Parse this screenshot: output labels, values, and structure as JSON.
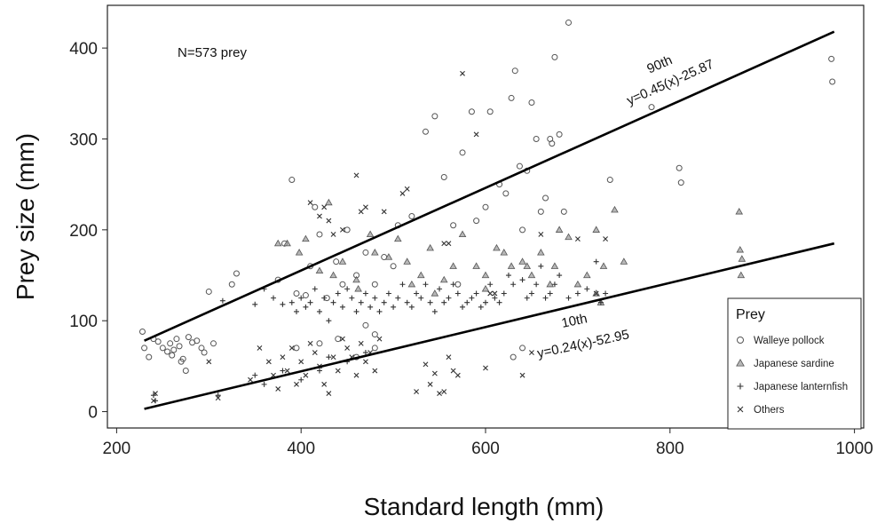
{
  "chart_data": {
    "type": "scatter",
    "title": "",
    "xlabel": "Standard length (mm)",
    "ylabel": "Prey size (mm)",
    "xlim": [
      190,
      1010
    ],
    "ylim": [
      -18,
      447
    ],
    "xticks": [
      200,
      400,
      600,
      800,
      1000
    ],
    "yticks": [
      0,
      100,
      200,
      300,
      400
    ],
    "grid": false,
    "annotation": "N=573 prey",
    "legend": {
      "title": "Prey",
      "position": "bottom-right"
    },
    "series": [
      {
        "name": "Walleye pollock",
        "marker": "circle",
        "points": [
          [
            228,
            88
          ],
          [
            230,
            70
          ],
          [
            235,
            60
          ],
          [
            240,
            80
          ],
          [
            245,
            77
          ],
          [
            250,
            70
          ],
          [
            255,
            66
          ],
          [
            258,
            75
          ],
          [
            260,
            62
          ],
          [
            262,
            68
          ],
          [
            265,
            80
          ],
          [
            268,
            72
          ],
          [
            270,
            55
          ],
          [
            272,
            58
          ],
          [
            275,
            45
          ],
          [
            278,
            82
          ],
          [
            282,
            76
          ],
          [
            287,
            78
          ],
          [
            292,
            70
          ],
          [
            295,
            65
          ],
          [
            300,
            132
          ],
          [
            305,
            75
          ],
          [
            325,
            140
          ],
          [
            330,
            152
          ],
          [
            375,
            145
          ],
          [
            382,
            185
          ],
          [
            390,
            255
          ],
          [
            395,
            130
          ],
          [
            405,
            128
          ],
          [
            410,
            160
          ],
          [
            415,
            225
          ],
          [
            420,
            195
          ],
          [
            428,
            125
          ],
          [
            438,
            165
          ],
          [
            445,
            140
          ],
          [
            450,
            200
          ],
          [
            460,
            150
          ],
          [
            470,
            175
          ],
          [
            480,
            140
          ],
          [
            490,
            170
          ],
          [
            500,
            160
          ],
          [
            505,
            205
          ],
          [
            520,
            215
          ],
          [
            535,
            308
          ],
          [
            545,
            325
          ],
          [
            555,
            258
          ],
          [
            565,
            205
          ],
          [
            570,
            140
          ],
          [
            575,
            285
          ],
          [
            585,
            330
          ],
          [
            590,
            210
          ],
          [
            600,
            225
          ],
          [
            605,
            330
          ],
          [
            615,
            250
          ],
          [
            622,
            240
          ],
          [
            628,
            345
          ],
          [
            632,
            375
          ],
          [
            637,
            270
          ],
          [
            640,
            200
          ],
          [
            645,
            265
          ],
          [
            650,
            340
          ],
          [
            655,
            300
          ],
          [
            660,
            220
          ],
          [
            665,
            235
          ],
          [
            670,
            300
          ],
          [
            672,
            295
          ],
          [
            675,
            390
          ],
          [
            680,
            305
          ],
          [
            685,
            220
          ],
          [
            690,
            428
          ],
          [
            735,
            255
          ],
          [
            780,
            335
          ],
          [
            810,
            268
          ],
          [
            812,
            252
          ],
          [
            975,
            388
          ],
          [
            976,
            363
          ],
          [
            470,
            95
          ],
          [
            480,
            85
          ],
          [
            395,
            70
          ],
          [
            420,
            75
          ],
          [
            440,
            80
          ],
          [
            460,
            60
          ],
          [
            480,
            70
          ],
          [
            630,
            60
          ],
          [
            640,
            70
          ]
        ]
      },
      {
        "name": "Japanese sardine",
        "marker": "triangle",
        "points": [
          [
            375,
            185
          ],
          [
            385,
            185
          ],
          [
            405,
            190
          ],
          [
            420,
            155
          ],
          [
            435,
            150
          ],
          [
            445,
            165
          ],
          [
            460,
            145
          ],
          [
            475,
            195
          ],
          [
            480,
            175
          ],
          [
            495,
            170
          ],
          [
            505,
            190
          ],
          [
            515,
            165
          ],
          [
            530,
            150
          ],
          [
            540,
            180
          ],
          [
            555,
            145
          ],
          [
            565,
            160
          ],
          [
            575,
            195
          ],
          [
            590,
            160
          ],
          [
            600,
            150
          ],
          [
            612,
            180
          ],
          [
            620,
            175
          ],
          [
            628,
            160
          ],
          [
            640,
            165
          ],
          [
            650,
            150
          ],
          [
            660,
            175
          ],
          [
            670,
            140
          ],
          [
            680,
            200
          ],
          [
            690,
            192
          ],
          [
            700,
            140
          ],
          [
            710,
            150
          ],
          [
            720,
            200
          ],
          [
            728,
            160
          ],
          [
            740,
            222
          ],
          [
            750,
            165
          ],
          [
            875,
            220
          ],
          [
            876,
            178
          ],
          [
            877,
            150
          ],
          [
            878,
            168
          ],
          [
            398,
            175
          ],
          [
            430,
            230
          ],
          [
            462,
            135
          ],
          [
            520,
            140
          ],
          [
            545,
            130
          ],
          [
            600,
            135
          ],
          [
            645,
            160
          ],
          [
            675,
            160
          ],
          [
            720,
            130
          ],
          [
            725,
            120
          ]
        ]
      },
      {
        "name": "Japanese lanternfish",
        "marker": "plus",
        "points": [
          [
            240,
            18
          ],
          [
            242,
            12
          ],
          [
            310,
            18
          ],
          [
            315,
            122
          ],
          [
            350,
            118
          ],
          [
            360,
            135
          ],
          [
            370,
            125
          ],
          [
            380,
            118
          ],
          [
            390,
            120
          ],
          [
            395,
            110
          ],
          [
            400,
            125
          ],
          [
            405,
            115
          ],
          [
            410,
            120
          ],
          [
            415,
            135
          ],
          [
            420,
            110
          ],
          [
            425,
            125
          ],
          [
            430,
            100
          ],
          [
            435,
            120
          ],
          [
            440,
            130
          ],
          [
            445,
            115
          ],
          [
            450,
            135
          ],
          [
            455,
            125
          ],
          [
            460,
            110
          ],
          [
            465,
            120
          ],
          [
            470,
            130
          ],
          [
            475,
            115
          ],
          [
            480,
            125
          ],
          [
            485,
            110
          ],
          [
            490,
            120
          ],
          [
            495,
            130
          ],
          [
            500,
            115
          ],
          [
            505,
            125
          ],
          [
            510,
            140
          ],
          [
            515,
            120
          ],
          [
            520,
            115
          ],
          [
            525,
            130
          ],
          [
            530,
            125
          ],
          [
            535,
            140
          ],
          [
            540,
            120
          ],
          [
            545,
            110
          ],
          [
            550,
            135
          ],
          [
            555,
            120
          ],
          [
            560,
            125
          ],
          [
            565,
            140
          ],
          [
            570,
            130
          ],
          [
            575,
            115
          ],
          [
            580,
            120
          ],
          [
            585,
            125
          ],
          [
            590,
            130
          ],
          [
            595,
            115
          ],
          [
            600,
            120
          ],
          [
            605,
            140
          ],
          [
            610,
            125
          ],
          [
            615,
            120
          ],
          [
            620,
            130
          ],
          [
            625,
            150
          ],
          [
            630,
            140
          ],
          [
            640,
            145
          ],
          [
            645,
            125
          ],
          [
            650,
            130
          ],
          [
            655,
            140
          ],
          [
            660,
            160
          ],
          [
            665,
            125
          ],
          [
            670,
            130
          ],
          [
            675,
            140
          ],
          [
            680,
            150
          ],
          [
            690,
            125
          ],
          [
            700,
            130
          ],
          [
            710,
            135
          ],
          [
            720,
            165
          ],
          [
            725,
            120
          ],
          [
            730,
            130
          ],
          [
            350,
            40
          ],
          [
            360,
            30
          ],
          [
            380,
            45
          ],
          [
            400,
            35
          ],
          [
            420,
            45
          ],
          [
            430,
            60
          ],
          [
            450,
            55
          ],
          [
            470,
            65
          ]
        ]
      },
      {
        "name": "Others",
        "marker": "x",
        "points": [
          [
            240,
            12
          ],
          [
            242,
            20
          ],
          [
            300,
            55
          ],
          [
            310,
            15
          ],
          [
            345,
            35
          ],
          [
            355,
            70
          ],
          [
            365,
            55
          ],
          [
            370,
            40
          ],
          [
            375,
            25
          ],
          [
            380,
            60
          ],
          [
            385,
            45
          ],
          [
            390,
            70
          ],
          [
            395,
            30
          ],
          [
            400,
            55
          ],
          [
            405,
            40
          ],
          [
            410,
            75
          ],
          [
            415,
            65
          ],
          [
            420,
            50
          ],
          [
            425,
            30
          ],
          [
            430,
            20
          ],
          [
            435,
            60
          ],
          [
            440,
            45
          ],
          [
            445,
            80
          ],
          [
            450,
            70
          ],
          [
            455,
            60
          ],
          [
            460,
            40
          ],
          [
            465,
            75
          ],
          [
            470,
            55
          ],
          [
            475,
            65
          ],
          [
            480,
            45
          ],
          [
            485,
            80
          ],
          [
            410,
            230
          ],
          [
            420,
            215
          ],
          [
            425,
            225
          ],
          [
            430,
            210
          ],
          [
            435,
            195
          ],
          [
            445,
            200
          ],
          [
            460,
            260
          ],
          [
            465,
            220
          ],
          [
            470,
            225
          ],
          [
            490,
            220
          ],
          [
            510,
            240
          ],
          [
            515,
            245
          ],
          [
            525,
            22
          ],
          [
            535,
            52
          ],
          [
            540,
            30
          ],
          [
            545,
            42
          ],
          [
            550,
            20
          ],
          [
            555,
            22
          ],
          [
            560,
            60
          ],
          [
            565,
            45
          ],
          [
            570,
            40
          ],
          [
            575,
            372
          ],
          [
            590,
            305
          ],
          [
            600,
            48
          ],
          [
            605,
            130
          ],
          [
            610,
            130
          ],
          [
            640,
            40
          ],
          [
            650,
            65
          ],
          [
            660,
            195
          ],
          [
            700,
            190
          ],
          [
            720,
            130
          ],
          [
            730,
            190
          ],
          [
            555,
            185
          ],
          [
            560,
            185
          ]
        ]
      }
    ],
    "fit_lines": [
      {
        "name": "90th",
        "equation": "y=0.45(x)-25.87",
        "x_range": [
          230,
          978
        ],
        "y_values": [
          78,
          418
        ]
      },
      {
        "name": "10th",
        "equation": "y=0.24(x)-52.95",
        "x_range": [
          230,
          978
        ],
        "y_values": [
          3,
          185
        ]
      }
    ]
  }
}
